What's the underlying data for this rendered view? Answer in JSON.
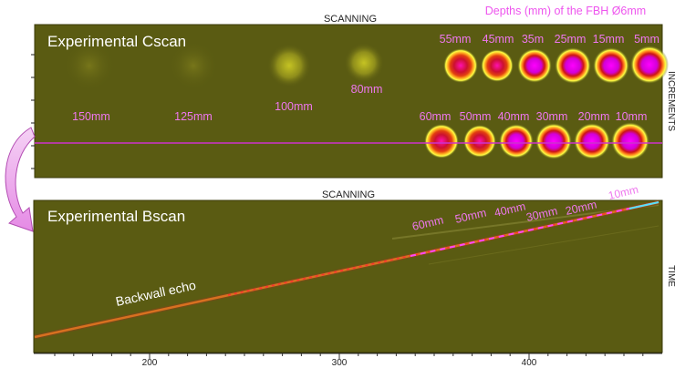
{
  "cscan": {
    "title": "Experimental Cscan",
    "axis_top": "SCANNING",
    "axis_right": "INCREMENTS",
    "legend_note": "Depths (mm) of the FBH Ø6mm",
    "top_row_labels": [
      "150mm",
      "125mm",
      "100mm",
      "80mm"
    ],
    "top_row_hole_labels": [
      "55mm",
      "45mm",
      "35m",
      "25mm",
      "15mm",
      "5mm"
    ],
    "bottom_row_hole_labels": [
      "60mm",
      "50mm",
      "40mm",
      "30mm",
      "20mm",
      "10mm"
    ]
  },
  "bscan": {
    "title": "Experimental Bscan",
    "axis_top": "SCANNING",
    "axis_right": "TIME",
    "echo_label": "Backwall echo",
    "depth_labels": [
      "60mm",
      "50mm",
      "40mm",
      "30mm",
      "20mm",
      "10mm"
    ],
    "x_ticks": [
      "200",
      "300",
      "400"
    ]
  },
  "colors": {
    "background_olive": "#5a5b12",
    "hole_core": "#ff00ff",
    "hole_ring": "#ffff44",
    "cursor_line": "#cc33cc",
    "annotation_pink": "#ee77ee",
    "label_white": "#ffffff",
    "arrow_fill": "#f2b8f2"
  }
}
